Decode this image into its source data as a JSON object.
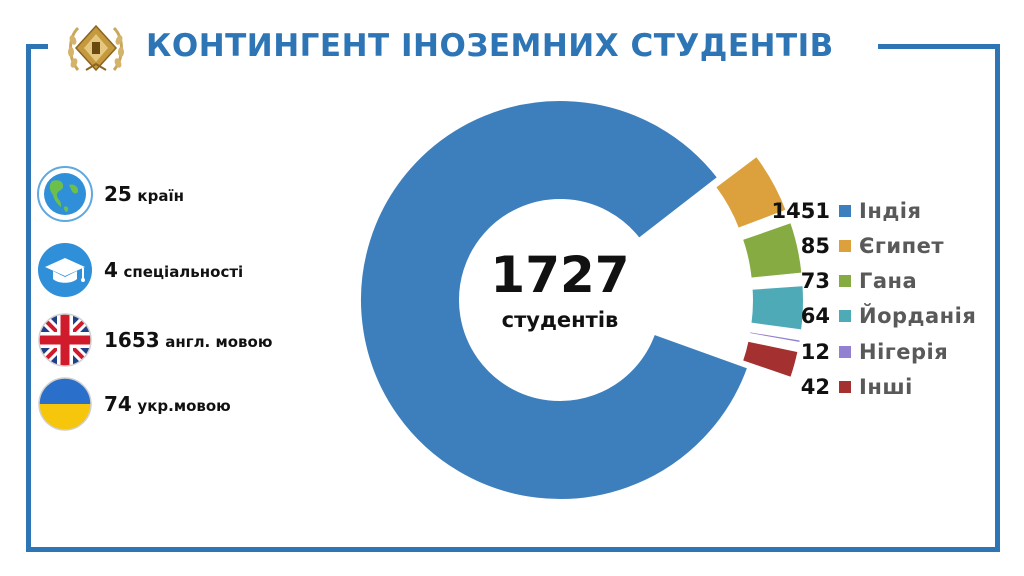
{
  "title": "КОНТИНГЕНТ ІНОЗЕМНИХ СТУДЕНТІВ",
  "stats": [
    {
      "number": "25",
      "label": "країн",
      "icon": "globe-icon"
    },
    {
      "number": "4",
      "label": "спеціальності",
      "icon": "graduation-cap-icon"
    },
    {
      "number": "1653",
      "label": "англ. мовою",
      "icon": "uk-flag-icon"
    },
    {
      "number": "74",
      "label": "укр.мовою",
      "icon": "ukraine-flag-icon"
    }
  ],
  "chart_data": {
    "type": "pie",
    "variant": "doughnut-exploded",
    "center_value": "1727",
    "center_label": "студентів",
    "categories": [
      "Індія",
      "Єгипет",
      "Гана",
      "Йорданія",
      "Нігерія",
      "Інші"
    ],
    "values": [
      1451,
      85,
      73,
      64,
      12,
      42
    ],
    "colors": [
      "#3d7fbd",
      "#dca13c",
      "#86ab42",
      "#4faab8",
      "#9480d0",
      "#a4302f"
    ],
    "legend_placement": "right"
  },
  "colors": {
    "accent": "#2e75b6"
  }
}
